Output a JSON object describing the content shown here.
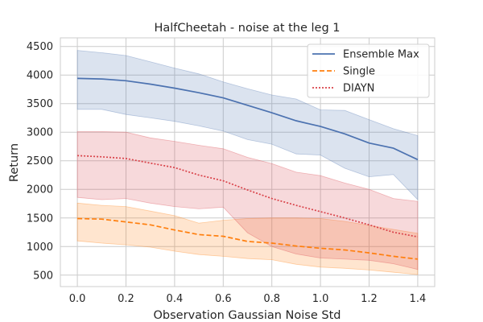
{
  "chart_data": {
    "type": "line",
    "title": "HalfCheetah - noise at the leg 1",
    "xlabel": "Observation Gaussian Noise Std",
    "ylabel": "Return",
    "xlim": [
      -0.07,
      1.47
    ],
    "ylim": [
      300,
      4650
    ],
    "x_ticks": [
      0.0,
      0.2,
      0.4,
      0.6,
      0.8,
      1.0,
      1.2,
      1.4
    ],
    "x_tick_labels": [
      "0.0",
      "0.2",
      "0.4",
      "0.6",
      "0.8",
      "1.0",
      "1.2",
      "1.4"
    ],
    "y_ticks": [
      500,
      1000,
      1500,
      2000,
      2500,
      3000,
      3500,
      4000,
      4500
    ],
    "y_tick_labels": [
      "500",
      "1000",
      "1500",
      "2000",
      "2500",
      "3000",
      "3500",
      "4000",
      "4500"
    ],
    "grid": true,
    "legend_position": "top-right",
    "x": [
      0.0,
      0.1,
      0.2,
      0.3,
      0.4,
      0.5,
      0.6,
      0.7,
      0.8,
      0.9,
      1.0,
      1.1,
      1.2,
      1.3,
      1.4
    ],
    "series": [
      {
        "name": "Ensemble Max",
        "color": "#4c72b0",
        "line_style": "solid",
        "values": [
          3940,
          3930,
          3900,
          3840,
          3770,
          3690,
          3600,
          3470,
          3340,
          3200,
          3100,
          2970,
          2810,
          2720,
          2520
        ],
        "lower": [
          3400,
          3400,
          3310,
          3250,
          3190,
          3110,
          3020,
          2870,
          2790,
          2620,
          2600,
          2370,
          2220,
          2260,
          1820
        ],
        "upper": [
          4430,
          4390,
          4340,
          4230,
          4120,
          4020,
          3880,
          3760,
          3650,
          3580,
          3390,
          3380,
          3220,
          3060,
          2940
        ]
      },
      {
        "name": "Single",
        "color": "#ff7f0e",
        "line_style": "dashed",
        "values": [
          1490,
          1480,
          1430,
          1380,
          1290,
          1210,
          1180,
          1090,
          1060,
          1010,
          970,
          940,
          890,
          830,
          780
        ],
        "lower": [
          1100,
          1060,
          1030,
          990,
          920,
          860,
          830,
          790,
          770,
          690,
          640,
          620,
          590,
          550,
          510
        ],
        "upper": [
          1760,
          1720,
          1700,
          1620,
          1540,
          1410,
          1460,
          1490,
          1500,
          1500,
          1490,
          1440,
          1370,
          1300,
          1230
        ]
      },
      {
        "name": "DIAYN",
        "color": "#d9434a",
        "line_style": "dotted",
        "values": [
          2590,
          2570,
          2540,
          2460,
          2380,
          2250,
          2150,
          1990,
          1840,
          1720,
          1610,
          1500,
          1380,
          1250,
          1170
        ],
        "lower": [
          1860,
          1820,
          1840,
          1760,
          1700,
          1660,
          1690,
          1240,
          1000,
          870,
          800,
          780,
          760,
          700,
          600
        ],
        "upper": [
          3010,
          3010,
          3000,
          2900,
          2840,
          2770,
          2710,
          2560,
          2450,
          2300,
          2240,
          2110,
          2000,
          1840,
          1790
        ]
      }
    ]
  }
}
